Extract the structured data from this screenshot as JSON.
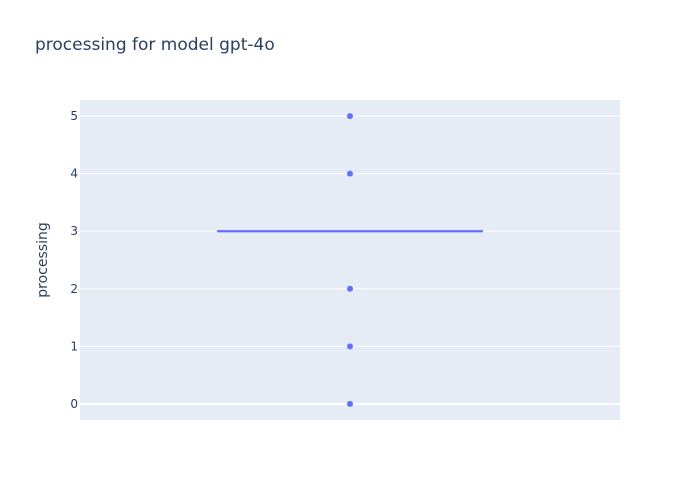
{
  "chart_data": {
    "type": "box",
    "title": "processing for model gpt-4o",
    "xlabel": "",
    "ylabel": "processing",
    "ylim": [
      -0.28,
      5.28
    ],
    "yticks": [
      0,
      1,
      2,
      3,
      4,
      5
    ],
    "grid": true,
    "series": [
      {
        "median": 3,
        "q1": 3,
        "q3": 3,
        "whisker_low": 3,
        "whisker_high": 3,
        "outliers": [
          0,
          1,
          2,
          4,
          5
        ]
      }
    ],
    "colors": {
      "plot_background": "#e5ecf6",
      "grid": "#ffffff",
      "box": "#636efa",
      "text": "#2a3f5f"
    }
  }
}
